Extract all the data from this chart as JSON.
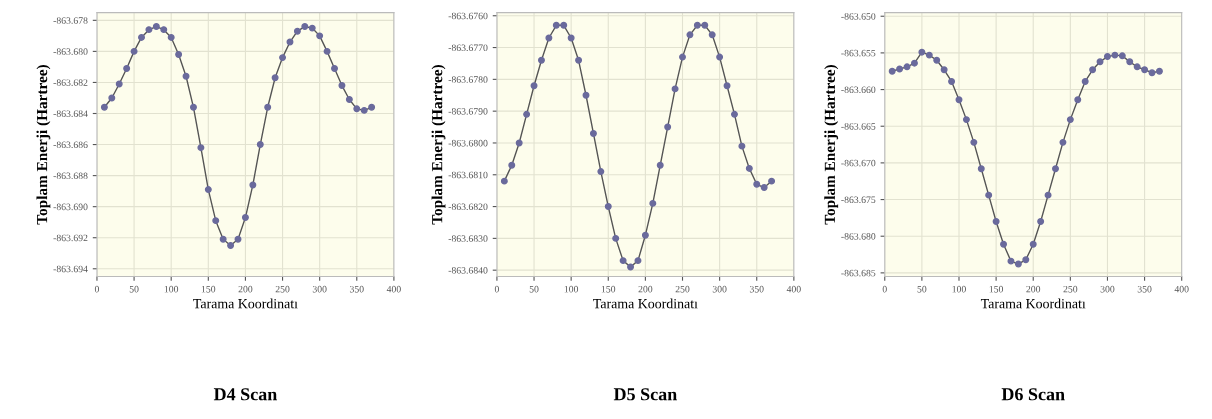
{
  "chart_data": [
    {
      "type": "line",
      "title": "D4 Scan",
      "xlabel": "Tarama Koordinatı",
      "ylabel": "Toplam Enerji (Hartree)",
      "x": [
        10,
        20,
        30,
        40,
        50,
        60,
        70,
        80,
        90,
        100,
        110,
        120,
        130,
        140,
        150,
        160,
        170,
        180,
        190,
        200,
        210,
        220,
        230,
        240,
        250,
        260,
        270,
        280,
        290,
        300,
        310,
        320,
        330,
        340,
        350,
        360,
        370
      ],
      "series": [
        {
          "color": "#6a6a9c",
          "values": [
            -863.6836,
            -863.683,
            -863.6821,
            -863.6811,
            -863.68,
            -863.6791,
            -863.6786,
            -863.6784,
            -863.6786,
            -863.6791,
            -863.6802,
            -863.6816,
            -863.6836,
            -863.6862,
            -863.6889,
            -863.6909,
            -863.6921,
            -863.6925,
            -863.6921,
            -863.6907,
            -863.6886,
            -863.686,
            -863.6836,
            -863.6817,
            -863.6804,
            -863.6794,
            -863.6787,
            -863.6784,
            -863.6785,
            -863.679,
            -863.68,
            -863.6811,
            -863.6822,
            -863.6831,
            -863.6837,
            -863.6838,
            -863.6836
          ]
        }
      ],
      "xlim": [
        0,
        400
      ],
      "xticks": [
        0,
        50,
        100,
        150,
        200,
        250,
        300,
        350,
        400
      ],
      "ylim": [
        -863.6945,
        -863.6775
      ],
      "yticks": [
        -863.678,
        {
          "value": -863.68,
          "label": "-863.680"
        },
        -863.682,
        -863.684,
        -863.686,
        -863.688,
        {
          "value": -863.69,
          "label": "-863.690"
        },
        -863.692,
        -863.694
      ],
      "grid": true,
      "marker": "circle",
      "line_style": "solid"
    },
    {
      "type": "line",
      "title": "D5 Scan",
      "xlabel": "Tarama Koordinatı",
      "ylabel": "Toplam Enerji (Hartree)",
      "x": [
        10,
        20,
        30,
        40,
        50,
        60,
        70,
        80,
        90,
        100,
        110,
        120,
        130,
        140,
        150,
        160,
        170,
        180,
        190,
        200,
        210,
        220,
        230,
        240,
        250,
        260,
        270,
        280,
        290,
        300,
        310,
        320,
        330,
        340,
        350,
        360,
        370
      ],
      "series": [
        {
          "color": "#6a6a9c",
          "values": [
            -863.6812,
            -863.6807,
            -863.68,
            -863.6791,
            -863.6782,
            -863.6774,
            -863.6767,
            -863.6763,
            -863.6763,
            -863.6767,
            -863.6774,
            -863.6785,
            -863.6797,
            -863.6809,
            -863.682,
            -863.683,
            -863.6837,
            -863.6839,
            -863.6837,
            -863.6829,
            -863.6819,
            -863.6807,
            -863.6795,
            -863.6783,
            -863.6773,
            -863.6766,
            -863.6763,
            -863.6763,
            -863.6766,
            -863.6773,
            -863.6782,
            -863.6791,
            -863.6801,
            -863.6808,
            -863.6813,
            -863.6814,
            -863.6812
          ]
        }
      ],
      "xlim": [
        0,
        400
      ],
      "xticks": [
        0,
        50,
        100,
        150,
        200,
        250,
        300,
        350,
        400
      ],
      "ylim": [
        -863.6842,
        -863.6759
      ],
      "yticks": [
        {
          "value": -863.676,
          "label": "-863.6760"
        },
        {
          "value": -863.677,
          "label": "-863.6770"
        },
        {
          "value": -863.678,
          "label": "-863.6780"
        },
        {
          "value": -863.679,
          "label": "-863.6790"
        },
        {
          "value": -863.68,
          "label": "-863.6800"
        },
        {
          "value": -863.681,
          "label": "-863.6810"
        },
        {
          "value": -863.682,
          "label": "-863.6820"
        },
        {
          "value": -863.683,
          "label": "-863.6830"
        },
        {
          "value": -863.684,
          "label": "-863.6840"
        }
      ],
      "grid": true,
      "marker": "circle",
      "line_style": "solid"
    },
    {
      "type": "line",
      "title": "D6 Scan",
      "xlabel": "Tarama Koordinatı",
      "ylabel": "Toplam Enerji (Hartree)",
      "x": [
        10,
        20,
        30,
        40,
        50,
        60,
        70,
        80,
        90,
        100,
        110,
        120,
        130,
        140,
        150,
        160,
        170,
        180,
        190,
        200,
        210,
        220,
        230,
        240,
        250,
        260,
        270,
        280,
        290,
        300,
        310,
        320,
        330,
        340,
        350,
        360,
        370
      ],
      "series": [
        {
          "color": "#6a6a9c",
          "values": [
            -863.6575,
            -863.6572,
            -863.6569,
            -863.6564,
            -863.6549,
            -863.6553,
            -863.656,
            -863.6573,
            -863.6589,
            -863.6614,
            -863.6641,
            -863.6672,
            -863.6708,
            -863.6744,
            -863.678,
            -863.6811,
            -863.6834,
            -863.6838,
            -863.6832,
            -863.6811,
            -863.678,
            -863.6744,
            -863.6708,
            -863.6672,
            -863.6641,
            -863.6614,
            -863.6589,
            -863.6573,
            -863.6562,
            -863.6555,
            -863.6553,
            -863.6554,
            -863.6562,
            -863.6569,
            -863.6573,
            -863.6577,
            -863.6575
          ]
        }
      ],
      "xlim": [
        0,
        400
      ],
      "xticks": [
        0,
        50,
        100,
        150,
        200,
        250,
        300,
        350,
        400
      ],
      "ylim": [
        -863.6855,
        -863.6495
      ],
      "yticks": [
        {
          "value": -863.65,
          "label": "-863.650"
        },
        -863.655,
        {
          "value": -863.66,
          "label": "-863.660"
        },
        -863.665,
        {
          "value": -863.67,
          "label": "-863.670"
        },
        -863.675,
        {
          "value": -863.68,
          "label": "-863.680"
        },
        -863.685
      ],
      "grid": true,
      "marker": "circle",
      "line_style": "solid"
    }
  ]
}
